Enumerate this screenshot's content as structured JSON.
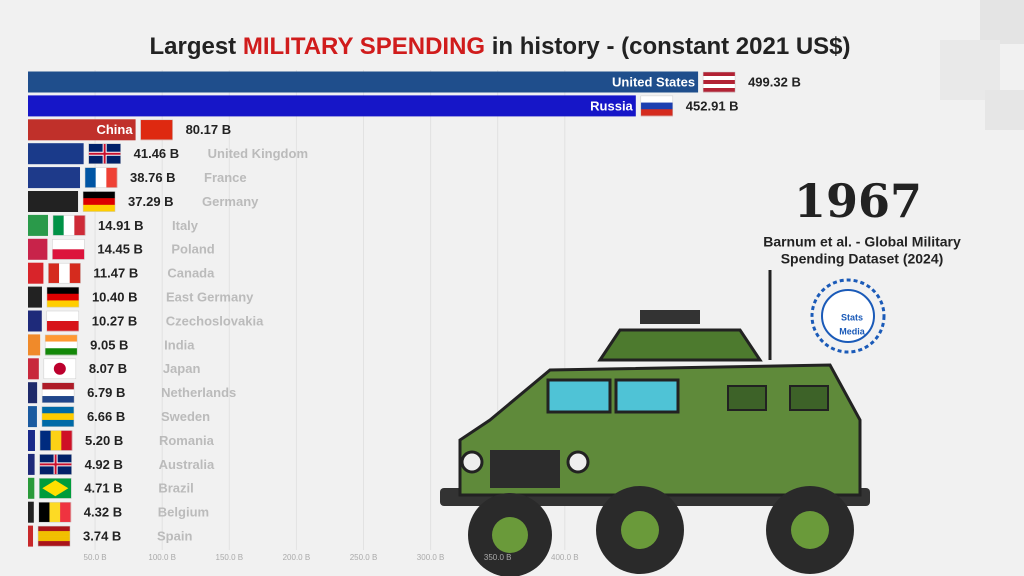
{
  "chart_data": {
    "type": "bar",
    "title_parts": [
      "Largest ",
      "MILITARY SPENDING",
      " in history  - (constant 2021 US$)"
    ],
    "year": "1967",
    "source_lines": [
      "Barnum et al. - Global Military",
      "Spending Dataset (2024)"
    ],
    "logo": [
      "Stats",
      "Media"
    ],
    "categories": [
      "United States",
      "Russia",
      "China",
      "United Kingdom",
      "France",
      "Germany",
      "Italy",
      "Poland",
      "Canada",
      "East Germany",
      "Czechoslovakia",
      "India",
      "Japan",
      "Netherlands",
      "Sweden",
      "Romania",
      "Australia",
      "Brazil",
      "Belgium",
      "Spain"
    ],
    "values": [
      499.32,
      452.91,
      80.17,
      41.46,
      38.76,
      37.29,
      14.91,
      14.45,
      11.47,
      10.4,
      10.27,
      9.05,
      8.07,
      6.79,
      6.66,
      5.2,
      4.92,
      4.71,
      4.32,
      3.74
    ],
    "value_labels": [
      "499.32 B",
      "452.91 B",
      "80.17 B",
      "41.46 B",
      "38.76 B",
      "37.29 B",
      "14.91 B",
      "14.45 B",
      "11.47 B",
      "10.40 B",
      "10.27 B",
      "9.05 B",
      "8.07 B",
      "6.79 B",
      "6.66 B",
      "5.20 B",
      "4.92 B",
      "4.71 B",
      "4.32 B",
      "3.74 B"
    ],
    "colors": [
      "#1f4e8c",
      "#1616c8",
      "#c0302a",
      "#1a3a8a",
      "#1e3a8a",
      "#222222",
      "#2a9a4a",
      "#c8234a",
      "#d8242a",
      "#222222",
      "#1e2a7a",
      "#f08a2a",
      "#c8283c",
      "#1e2a6a",
      "#1a5aa0",
      "#1a2a8a",
      "#1e2a7a",
      "#2a9a3a",
      "#222222",
      "#c8282a"
    ],
    "xlim": [
      0,
      500
    ],
    "xticks": [
      {
        "value": 50,
        "label": "50.0 B"
      },
      {
        "value": 100,
        "label": "100.0 B"
      },
      {
        "value": 150,
        "label": "150.0 B"
      },
      {
        "value": 200,
        "label": "200.0 B"
      },
      {
        "value": 250,
        "label": "250.0 B"
      },
      {
        "value": 300,
        "label": "300.0 B"
      },
      {
        "value": 350,
        "label": "350.0 B"
      },
      {
        "value": 400,
        "label": "400.0 B"
      }
    ],
    "grid": true
  }
}
